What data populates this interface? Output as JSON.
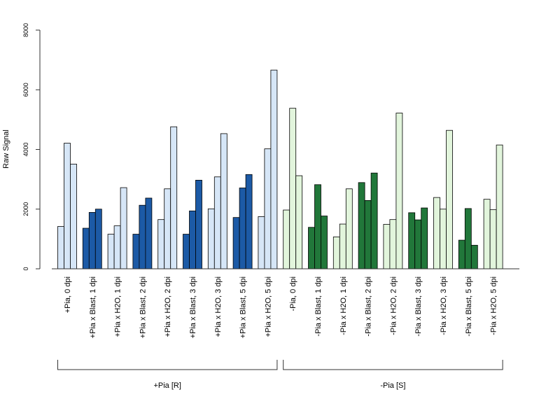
{
  "chart_data": {
    "type": "bar",
    "ylabel": "Raw Signal",
    "ylim": [
      0,
      8000
    ],
    "yticks": [
      0,
      2000,
      4000,
      6000,
      8000
    ],
    "grid": false,
    "bars_per_group": 3,
    "colors": {
      "plus_light": "#d6e6f7",
      "plus_dark": "#1c5aa6",
      "minus_light": "#e2f5dc",
      "minus_dark": "#21773a",
      "outline": "#000000",
      "axis": "#333333"
    },
    "categories": [
      {
        "label": "+Pia, 0 dpi",
        "values": [
          1420,
          4210,
          3510
        ],
        "tone": "plus_light"
      },
      {
        "label": "+Pia x Blast, 1 dpi",
        "values": [
          1360,
          1890,
          2000
        ],
        "tone": "plus_dark"
      },
      {
        "label": "+Pia x H2O, 1 dpi",
        "values": [
          1160,
          1440,
          2720
        ],
        "tone": "plus_light"
      },
      {
        "label": "+Pia x Blast, 2 dpi",
        "values": [
          1160,
          2130,
          2370
        ],
        "tone": "plus_dark"
      },
      {
        "label": "+Pia x H2O, 2 dpi",
        "values": [
          1650,
          2680,
          4760
        ],
        "tone": "plus_light"
      },
      {
        "label": "+Pia x Blast, 3 dpi",
        "values": [
          1160,
          1940,
          2970
        ],
        "tone": "plus_dark"
      },
      {
        "label": "+Pia x H2O, 3 dpi",
        "values": [
          2010,
          3080,
          4530
        ],
        "tone": "plus_light"
      },
      {
        "label": "+Pia x Blast, 5 dpi",
        "values": [
          1720,
          2710,
          3160
        ],
        "tone": "plus_dark"
      },
      {
        "label": "+Pia x H2O, 5 dpi",
        "values": [
          1750,
          4020,
          6660
        ],
        "tone": "plus_light"
      },
      {
        "label": "-Pia, 0 dpi",
        "values": [
          1970,
          5380,
          3120
        ],
        "tone": "minus_light"
      },
      {
        "label": "-Pia x Blast, 1 dpi",
        "values": [
          1390,
          2820,
          1770
        ],
        "tone": "minus_dark"
      },
      {
        "label": "-Pia x H2O, 1 dpi",
        "values": [
          1070,
          1500,
          2680
        ],
        "tone": "minus_light"
      },
      {
        "label": "-Pia x Blast, 2 dpi",
        "values": [
          2890,
          2290,
          3210
        ],
        "tone": "minus_dark"
      },
      {
        "label": "-Pia x H2O, 2 dpi",
        "values": [
          1490,
          1650,
          5220
        ],
        "tone": "minus_light"
      },
      {
        "label": "-Pia x Blast, 3 dpi",
        "values": [
          1880,
          1640,
          2040
        ],
        "tone": "minus_dark"
      },
      {
        "label": "-Pia x H2O, 3 dpi",
        "values": [
          2390,
          2000,
          4640
        ],
        "tone": "minus_light"
      },
      {
        "label": "-Pia x Blast, 5 dpi",
        "values": [
          960,
          2020,
          790
        ],
        "tone": "minus_dark"
      },
      {
        "label": "-Pia x H2O, 5 dpi",
        "values": [
          2330,
          1980,
          4150
        ],
        "tone": "minus_light"
      }
    ],
    "groups": [
      {
        "label": "+Pia [R]",
        "first": 0,
        "last": 8
      },
      {
        "label": "-Pia [S]",
        "first": 9,
        "last": 17
      }
    ]
  }
}
